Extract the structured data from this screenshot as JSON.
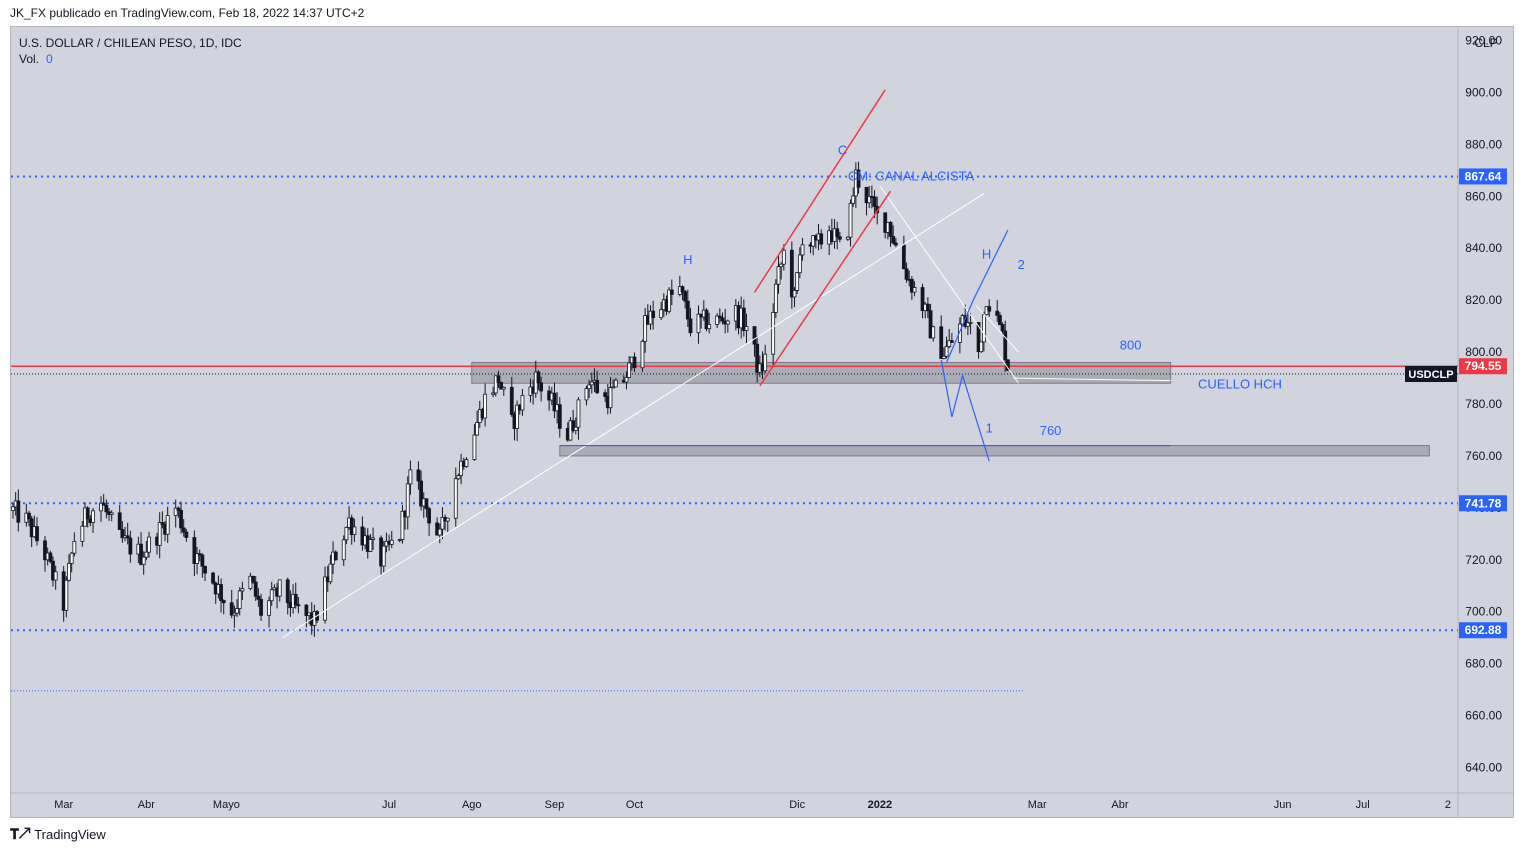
{
  "header": {
    "published": "JK_FX publicado en TradingView.com, Feb 18, 2022 14:37 UTC+2"
  },
  "footer": {
    "brand": "TradingView"
  },
  "colors": {
    "background": "#d1d4dc",
    "candle": "#131722",
    "level": "#2962ff",
    "price_line": "#f23645",
    "channel": "#f23645",
    "pattern": "#2962ff",
    "trendline": "#ffffff"
  },
  "chart_data": {
    "type": "candlestick",
    "title": "U.S. DOLLAR / CHILEAN PESO, 1D, IDC",
    "volume_label": "Vol.",
    "volume_value": "0",
    "ylabel": "CLP",
    "ylim": [
      630,
      925
    ],
    "y_ticks": [
      "640.00",
      "660.00",
      "680.00",
      "700.00",
      "720.00",
      "740.00",
      "760.00",
      "780.00",
      "800.00",
      "820.00",
      "840.00",
      "860.00",
      "880.00",
      "900.00",
      "920.00"
    ],
    "x_range": [
      "2021-02-10",
      "2022-08-05"
    ],
    "x_ticks": [
      {
        "label": "Mar",
        "date": "2021-03-01"
      },
      {
        "label": "Abr",
        "date": "2021-04-01"
      },
      {
        "label": "Mayo",
        "date": "2021-05-01"
      },
      {
        "label": "Jul",
        "date": "2021-07-01"
      },
      {
        "label": "Ago",
        "date": "2021-08-01"
      },
      {
        "label": "Sep",
        "date": "2021-09-01"
      },
      {
        "label": "Oct",
        "date": "2021-10-01"
      },
      {
        "label": "Dic",
        "date": "2021-12-01"
      },
      {
        "label": "2022",
        "date": "2022-01-01"
      },
      {
        "label": "Mar",
        "date": "2022-03-01"
      },
      {
        "label": "Abr",
        "date": "2022-04-01"
      },
      {
        "label": "Jun",
        "date": "2022-06-01"
      },
      {
        "label": "Jul",
        "date": "2022-07-01"
      },
      {
        "label": "2",
        "date": "2022-08-02"
      }
    ],
    "price_anchors": [
      [
        "2021-02-10",
        739
      ],
      [
        "2021-02-15",
        735
      ],
      [
        "2021-02-22",
        722
      ],
      [
        "2021-03-01",
        703
      ],
      [
        "2021-03-05",
        728
      ],
      [
        "2021-03-10",
        738
      ],
      [
        "2021-03-15",
        742
      ],
      [
        "2021-03-22",
        728
      ],
      [
        "2021-03-30",
        722
      ],
      [
        "2021-04-05",
        730
      ],
      [
        "2021-04-12",
        740
      ],
      [
        "2021-04-19",
        722
      ],
      [
        "2021-04-26",
        712
      ],
      [
        "2021-05-03",
        700
      ],
      [
        "2021-05-10",
        712
      ],
      [
        "2021-05-14",
        700
      ],
      [
        "2021-05-21",
        708
      ],
      [
        "2021-05-28",
        700
      ],
      [
        "2021-06-03",
        696
      ],
      [
        "2021-06-10",
        720
      ],
      [
        "2021-06-16",
        735
      ],
      [
        "2021-06-22",
        728
      ],
      [
        "2021-06-28",
        720
      ],
      [
        "2021-07-05",
        730
      ],
      [
        "2021-07-09",
        752
      ],
      [
        "2021-07-15",
        740
      ],
      [
        "2021-07-20",
        728
      ],
      [
        "2021-07-26",
        752
      ],
      [
        "2021-08-02",
        770
      ],
      [
        "2021-08-06",
        782
      ],
      [
        "2021-08-11",
        790
      ],
      [
        "2021-08-16",
        772
      ],
      [
        "2021-08-20",
        782
      ],
      [
        "2021-08-25",
        790
      ],
      [
        "2021-08-31",
        780
      ],
      [
        "2021-09-06",
        768
      ],
      [
        "2021-09-10",
        778
      ],
      [
        "2021-09-14",
        790
      ],
      [
        "2021-09-20",
        782
      ],
      [
        "2021-09-25",
        786
      ],
      [
        "2021-09-30",
        795
      ],
      [
        "2021-10-04",
        808
      ],
      [
        "2021-10-08",
        815
      ],
      [
        "2021-10-13",
        820
      ],
      [
        "2021-10-18",
        824
      ],
      [
        "2021-10-22",
        810
      ],
      [
        "2021-10-28",
        812
      ],
      [
        "2021-11-02",
        812
      ],
      [
        "2021-11-08",
        815
      ],
      [
        "2021-11-12",
        810
      ],
      [
        "2021-11-17",
        792
      ],
      [
        "2021-11-20",
        800
      ],
      [
        "2021-11-23",
        825
      ],
      [
        "2021-11-26",
        838
      ],
      [
        "2021-11-30",
        820
      ],
      [
        "2021-12-03",
        845
      ],
      [
        "2021-12-08",
        840
      ],
      [
        "2021-12-13",
        848
      ],
      [
        "2021-12-17",
        840
      ],
      [
        "2021-12-20",
        848
      ],
      [
        "2021-12-23",
        868
      ],
      [
        "2021-12-28",
        858
      ],
      [
        "2021-12-31",
        852
      ],
      [
        "2022-01-04",
        850
      ],
      [
        "2022-01-08",
        838
      ],
      [
        "2022-01-12",
        828
      ],
      [
        "2022-01-17",
        818
      ],
      [
        "2022-01-21",
        806
      ],
      [
        "2022-01-25",
        800
      ],
      [
        "2022-01-28",
        804
      ],
      [
        "2022-02-01",
        812
      ],
      [
        "2022-02-04",
        810
      ],
      [
        "2022-02-07",
        800
      ],
      [
        "2022-02-10",
        822
      ],
      [
        "2022-02-14",
        812
      ],
      [
        "2022-02-16",
        806
      ],
      [
        "2022-02-18",
        795
      ]
    ],
    "last_price": "794.55",
    "levels": [
      {
        "label": "867.64",
        "value": 867.64
      },
      {
        "label": "741.78",
        "value": 741.78
      },
      {
        "label": "692.88",
        "value": 692.88
      }
    ],
    "lower_dotted_level": 669.5,
    "symbol_tag": "USDCLP",
    "zones": [
      {
        "from": "2021-08-01",
        "to": "2022-04-20",
        "low": 788,
        "high": 796
      },
      {
        "from": "2021-09-03",
        "to": "2022-07-26",
        "low": 760,
        "high": 764
      }
    ],
    "annotations": {
      "c": "C",
      "cm": "CM: CANAL ALCISTA",
      "h1": "H",
      "h2": "H",
      "n2": "2",
      "n1": "1",
      "l800": "800",
      "l760": "760",
      "neck": "CUELLO HCH"
    },
    "channel_lines": [
      [
        [
          "2021-11-15",
          823
        ],
        [
          "2022-01-03",
          901
        ]
      ],
      [
        [
          "2021-11-17",
          787
        ],
        [
          "2022-01-05",
          862
        ]
      ]
    ],
    "trendlines": [
      [
        [
          "2021-05-22",
          690
        ],
        [
          "2022-02-09",
          861
        ]
      ],
      [
        [
          "2022-01-01",
          864
        ],
        [
          "2022-02-22",
          788
        ]
      ],
      [
        [
          "2022-02-06",
          818
        ],
        [
          "2022-02-22",
          800
        ]
      ],
      [
        [
          "2022-02-20",
          790
        ],
        [
          "2022-04-20",
          789
        ]
      ]
    ],
    "pattern_lines": [
      [
        [
          "2022-01-24",
          797
        ],
        [
          "2022-01-28",
          775
        ],
        [
          "2022-02-01",
          791
        ],
        [
          "2022-02-11",
          758
        ]
      ],
      [
        [
          "2022-01-26",
          796
        ],
        [
          "2022-02-05",
          820
        ],
        [
          "2022-02-18",
          847
        ]
      ],
      [
        [
          "2021-09-03",
          764
        ],
        [
          "2022-04-20",
          764
        ]
      ]
    ]
  }
}
